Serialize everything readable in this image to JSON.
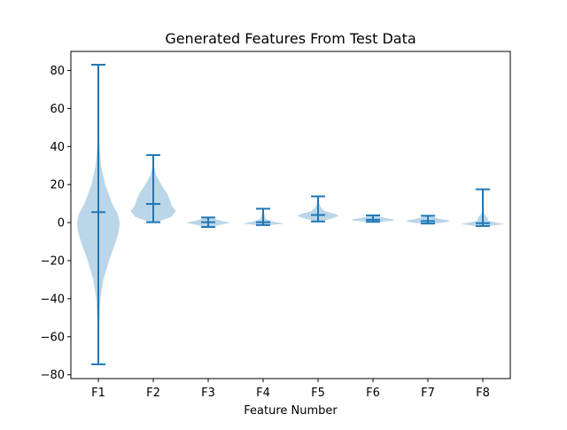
{
  "chart_data": {
    "type": "violin",
    "title": "Generated Features From Test Data",
    "xlabel": "Feature Number",
    "ylabel": "",
    "ylim": [
      -82,
      90
    ],
    "yticks": [
      -80,
      -60,
      -40,
      -20,
      0,
      20,
      40,
      60,
      80
    ],
    "categories": [
      "F1",
      "F2",
      "F3",
      "F4",
      "F5",
      "F6",
      "F7",
      "F8"
    ],
    "series": [
      {
        "label": "F1",
        "min": -74.5,
        "max": 83,
        "mean": 5.5,
        "density": [
          [
            -74.5,
            0.0
          ],
          [
            -60,
            0.02
          ],
          [
            -40,
            0.09
          ],
          [
            -30,
            0.22
          ],
          [
            -20,
            0.46
          ],
          [
            -10,
            0.76
          ],
          [
            -5,
            0.88
          ],
          [
            0,
            0.93
          ],
          [
            5,
            0.83
          ],
          [
            10,
            0.6
          ],
          [
            20,
            0.3
          ],
          [
            30,
            0.12
          ],
          [
            40,
            0.05
          ],
          [
            60,
            0.01
          ],
          [
            83,
            0.0
          ]
        ]
      },
      {
        "label": "F2",
        "min": 0.2,
        "max": 35.5,
        "mean": 9.8,
        "density": [
          [
            0.2,
            0.12
          ],
          [
            3,
            0.78
          ],
          [
            6,
            0.98
          ],
          [
            9,
            0.8
          ],
          [
            12,
            0.72
          ],
          [
            15,
            0.62
          ],
          [
            18,
            0.45
          ],
          [
            21,
            0.3
          ],
          [
            25,
            0.12
          ],
          [
            30,
            0.03
          ],
          [
            35.5,
            0.0
          ]
        ]
      },
      {
        "label": "F3",
        "min": -2.3,
        "max": 2.7,
        "mean": 0.2,
        "density": [
          [
            -2.3,
            0.08
          ],
          [
            -1,
            0.6
          ],
          [
            0,
            0.96
          ],
          [
            1,
            0.55
          ],
          [
            2.7,
            0.05
          ]
        ]
      },
      {
        "label": "F4",
        "min": -1.3,
        "max": 7.3,
        "mean": 0.2,
        "density": [
          [
            -1.3,
            0.3
          ],
          [
            -0.5,
            0.92
          ],
          [
            0.5,
            0.45
          ],
          [
            2,
            0.12
          ],
          [
            4,
            0.06
          ],
          [
            7.3,
            0.0
          ]
        ]
      },
      {
        "label": "F5",
        "min": 0.6,
        "max": 13.8,
        "mean": 4.0,
        "density": [
          [
            0.6,
            0.08
          ],
          [
            2,
            0.55
          ],
          [
            3.5,
            0.9
          ],
          [
            4.5,
            0.75
          ],
          [
            6,
            0.3
          ],
          [
            8,
            0.12
          ],
          [
            10,
            0.05
          ],
          [
            13.8,
            0.0
          ]
        ]
      },
      {
        "label": "F6",
        "min": 0.4,
        "max": 3.8,
        "mean": 1.5,
        "density": [
          [
            0.4,
            0.3
          ],
          [
            1,
            0.85
          ],
          [
            1.6,
            0.95
          ],
          [
            2.5,
            0.5
          ],
          [
            3.8,
            0.08
          ]
        ]
      },
      {
        "label": "F7",
        "min": -0.5,
        "max": 3.6,
        "mean": 0.8,
        "density": [
          [
            -0.5,
            0.3
          ],
          [
            0.3,
            0.85
          ],
          [
            1,
            0.95
          ],
          [
            2,
            0.5
          ],
          [
            3.6,
            0.06
          ]
        ]
      },
      {
        "label": "F8",
        "min": -1.8,
        "max": 17.5,
        "mean": -0.3,
        "density": [
          [
            -1.8,
            0.3
          ],
          [
            -0.8,
            0.95
          ],
          [
            0,
            0.6
          ],
          [
            1,
            0.22
          ],
          [
            2,
            0.22
          ],
          [
            3,
            0.18
          ],
          [
            5,
            0.05
          ],
          [
            10,
            0.02
          ],
          [
            17.5,
            0.0
          ]
        ]
      }
    ],
    "colors": {
      "violin_fill": "#1f77b4",
      "violin_alpha": 0.3,
      "line": "#1f77b4"
    },
    "grid": false,
    "legend": "none"
  }
}
